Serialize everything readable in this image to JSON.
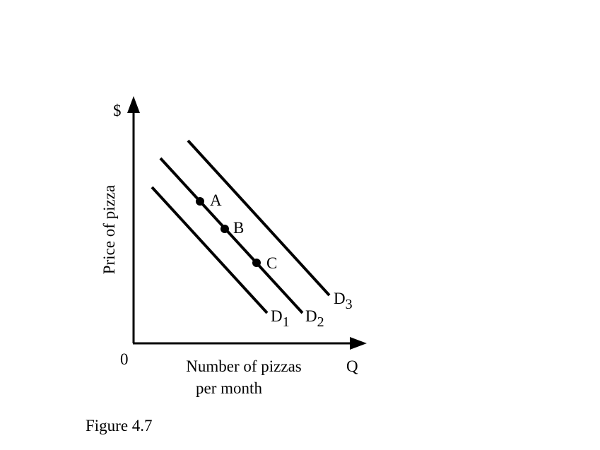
{
  "axes": {
    "y_symbol": "$",
    "y_label": "Price of pizza",
    "origin": "0",
    "x_label_line1": "Number of pizzas",
    "x_label_line2": "per month",
    "x_symbol": "Q"
  },
  "points": [
    "A",
    "B",
    "C"
  ],
  "curves": [
    {
      "letter": "D",
      "subscript": "1"
    },
    {
      "letter": "D",
      "subscript": "2"
    },
    {
      "letter": "D",
      "subscript": "3"
    }
  ],
  "caption": "Figure 4.7"
}
